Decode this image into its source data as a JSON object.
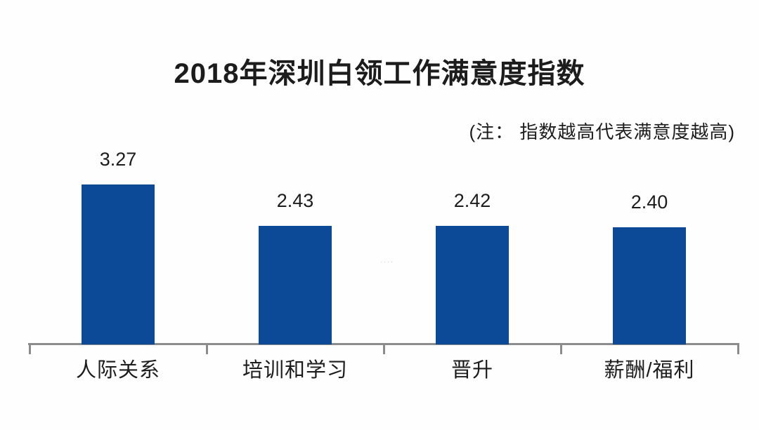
{
  "chart": {
    "title": "2018年深圳白领工作满意度指数",
    "note": "(注： 指数越高代表满意度越高)",
    "watermark": "····"
  },
  "chart_data": {
    "type": "bar",
    "title": "2018年深圳白领工作满意度指数",
    "subtitle": "",
    "note": "(注： 指数越高代表满意度越高)",
    "categories": [
      "人际关系",
      "培训和学习",
      "晋升",
      "薪酬/福利"
    ],
    "values": [
      3.27,
      2.43,
      2.42,
      2.4
    ],
    "value_labels": [
      "3.27",
      "2.43",
      "2.42",
      "2.40"
    ],
    "xlabel": "",
    "ylabel": "",
    "ylim": [
      0,
      3.5
    ],
    "grid": false,
    "legend": false,
    "bar_color": "#0c4a97",
    "axis_color": "#8c8c8c",
    "text_color": "#1c1c1c"
  }
}
